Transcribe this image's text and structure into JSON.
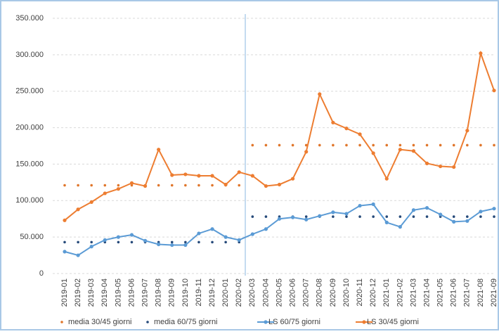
{
  "chart_data": {
    "type": "line",
    "categories": [
      "2019-01",
      "2019-02",
      "2019-03",
      "2019-04",
      "2019-05",
      "2019-06",
      "2019-07",
      "2019-08",
      "2019-09",
      "2019-10",
      "2019-11",
      "2019-12",
      "2020-01",
      "2020-02",
      "2020-03",
      "2020-04",
      "2020-05",
      "2020-06",
      "2020-07",
      "2020-08",
      "2020-09",
      "2020-10",
      "2020-11",
      "2020-12",
      "2021-01",
      "2021-02",
      "2021-03",
      "2021-04",
      "2021-05",
      "2021-06",
      "2021-07",
      "2021-08",
      "2021-09"
    ],
    "ylim": [
      0,
      350000
    ],
    "yticks": [
      0,
      {
        "value": 50000,
        "label": "50.000"
      },
      {
        "value": 100000,
        "label": "100.000"
      },
      {
        "value": 150000,
        "label": "150.000"
      },
      {
        "value": 200000,
        "label": "200.000"
      },
      {
        "value": 250000,
        "label": "250.000"
      },
      {
        "value": 300000,
        "label": "300.000"
      },
      {
        "value": 350000,
        "label": "350.000"
      }
    ],
    "grid": true,
    "legend": "bottom",
    "series": [
      {
        "name": "media 30/45 giorni",
        "color": "#e0762b",
        "mode": "markers",
        "values": [
          121000,
          121000,
          121000,
          121000,
          121000,
          121000,
          121000,
          121000,
          121000,
          121000,
          121000,
          121000,
          121000,
          121000,
          176000,
          176000,
          176000,
          176000,
          176000,
          176000,
          176000,
          176000,
          176000,
          176000,
          176000,
          176000,
          176000,
          176000,
          176000,
          176000,
          176000,
          176000,
          176000
        ]
      },
      {
        "name": "media 60/75 giorni",
        "color": "#264a7a",
        "mode": "markers",
        "values": [
          43000,
          43000,
          43000,
          43000,
          43000,
          43000,
          43000,
          43000,
          43000,
          43000,
          43000,
          43000,
          43000,
          43000,
          78000,
          78000,
          78000,
          78000,
          78000,
          78000,
          78000,
          78000,
          78000,
          78000,
          78000,
          78000,
          78000,
          78000,
          78000,
          78000,
          78000,
          78000,
          78000
        ]
      },
      {
        "name": "LS 60/75 giorni",
        "color": "#5b9bd5",
        "mode": "lines+markers",
        "values": [
          30000,
          25000,
          37000,
          46000,
          50000,
          53000,
          45000,
          40000,
          39000,
          39000,
          55000,
          61000,
          50000,
          46000,
          54000,
          61000,
          75000,
          77000,
          74000,
          79000,
          84000,
          82000,
          93000,
          95000,
          70000,
          64000,
          87000,
          90000,
          81000,
          71000,
          72000,
          85000,
          89000
        ]
      },
      {
        "name": "LS 30/45 giorni",
        "color": "#ed7d31",
        "mode": "lines+markers",
        "values": [
          73000,
          88000,
          98000,
          110000,
          116000,
          124000,
          120000,
          170000,
          135000,
          136000,
          134000,
          134000,
          122000,
          139000,
          134000,
          120000,
          122000,
          130000,
          167000,
          246000,
          207000,
          199000,
          191000,
          165000,
          130000,
          170000,
          168000,
          151000,
          147000,
          146000,
          196000,
          302000,
          251000
        ]
      }
    ]
  }
}
